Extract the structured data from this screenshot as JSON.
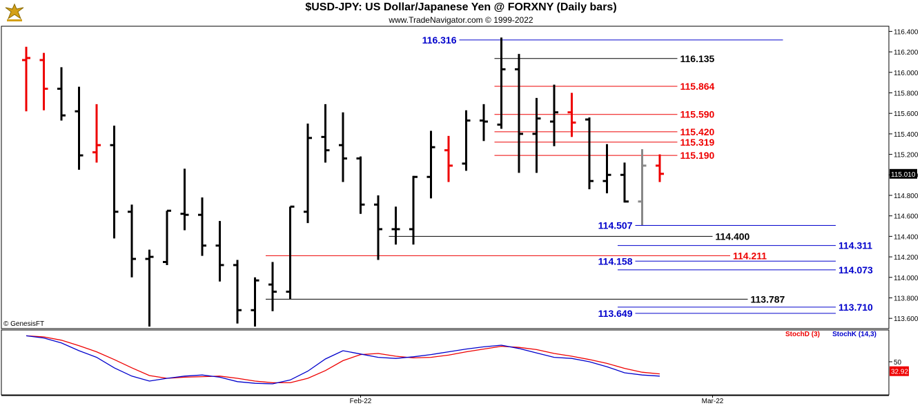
{
  "header": {
    "title": "$USD-JPY:  US Dollar/Japanese Yen @ FORXNY  (Daily bars)",
    "subtitle": "www.TradeNavigator.com © 1999-2022",
    "logo_icon": "eagle-logo-icon",
    "watermark": "© GenesisFT"
  },
  "colors": {
    "up_bar": "#000000",
    "down_bar": "#ee0000",
    "current_bar": "#888888",
    "level_blue": "#0000cc",
    "level_red": "#ee0000",
    "level_black": "#000000",
    "stoch_d": "#ee0000",
    "stoch_k": "#0000cc",
    "last_price_bg": "#000000",
    "stoch_last_bg": "#ee0000"
  },
  "chart_data": {
    "type": "ohlc-bar",
    "price_axis": {
      "ylim": [
        113.5,
        116.45
      ],
      "ticks": [
        "116.400",
        "116.200",
        "116.000",
        "115.800",
        "115.600",
        "115.400",
        "115.200",
        "115.000",
        "114.800",
        "114.600",
        "114.400",
        "114.200",
        "114.000",
        "113.800",
        "113.600"
      ],
      "last_price": "115.010"
    },
    "time_axis": {
      "labels": [
        "Feb-22",
        "Mar-22"
      ],
      "label_bar_index": [
        19,
        39
      ]
    },
    "bars": [
      {
        "o": 116.12,
        "h": 116.25,
        "l": 115.62,
        "c": 116.14,
        "color": "down"
      },
      {
        "o": 116.12,
        "h": 116.19,
        "l": 115.63,
        "c": 115.84,
        "color": "down"
      },
      {
        "o": 115.84,
        "h": 116.05,
        "l": 115.53,
        "c": 115.58,
        "color": "up"
      },
      {
        "o": 115.62,
        "h": 115.86,
        "l": 115.05,
        "c": 115.19,
        "color": "up"
      },
      {
        "o": 115.22,
        "h": 115.69,
        "l": 115.12,
        "c": 115.29,
        "color": "down"
      },
      {
        "o": 115.29,
        "h": 115.48,
        "l": 114.38,
        "c": 114.64,
        "color": "up"
      },
      {
        "o": 114.64,
        "h": 114.71,
        "l": 114.0,
        "c": 114.18,
        "color": "up"
      },
      {
        "o": 114.18,
        "h": 114.27,
        "l": 113.52,
        "c": 114.2,
        "color": "up"
      },
      {
        "o": 114.15,
        "h": 114.65,
        "l": 114.12,
        "c": 114.65,
        "color": "up"
      },
      {
        "o": 114.62,
        "h": 115.06,
        "l": 114.46,
        "c": 114.61,
        "color": "up"
      },
      {
        "o": 114.61,
        "h": 114.78,
        "l": 114.21,
        "c": 114.31,
        "color": "up"
      },
      {
        "o": 114.31,
        "h": 114.55,
        "l": 113.96,
        "c": 114.12,
        "color": "up"
      },
      {
        "o": 114.12,
        "h": 114.17,
        "l": 113.55,
        "c": 113.68,
        "color": "up"
      },
      {
        "o": 113.68,
        "h": 114.0,
        "l": 113.52,
        "c": 113.97,
        "color": "up"
      },
      {
        "o": 113.93,
        "h": 114.15,
        "l": 113.67,
        "c": 113.86,
        "color": "up"
      },
      {
        "o": 113.86,
        "h": 114.69,
        "l": 113.79,
        "c": 114.69,
        "color": "up"
      },
      {
        "o": 114.64,
        "h": 115.5,
        "l": 114.53,
        "c": 115.36,
        "color": "up"
      },
      {
        "o": 115.37,
        "h": 115.69,
        "l": 115.12,
        "c": 115.24,
        "color": "up"
      },
      {
        "o": 115.29,
        "h": 115.61,
        "l": 114.93,
        "c": 115.16,
        "color": "up"
      },
      {
        "o": 115.16,
        "h": 115.18,
        "l": 114.62,
        "c": 114.71,
        "color": "up"
      },
      {
        "o": 114.71,
        "h": 114.8,
        "l": 114.17,
        "c": 114.47,
        "color": "up"
      },
      {
        "o": 114.47,
        "h": 114.69,
        "l": 114.32,
        "c": 114.47,
        "color": "up"
      },
      {
        "o": 114.47,
        "h": 114.99,
        "l": 114.32,
        "c": 114.98,
        "color": "up"
      },
      {
        "o": 114.98,
        "h": 115.43,
        "l": 114.77,
        "c": 115.27,
        "color": "up"
      },
      {
        "o": 115.24,
        "h": 115.38,
        "l": 114.93,
        "c": 115.09,
        "color": "down"
      },
      {
        "o": 115.11,
        "h": 115.63,
        "l": 115.04,
        "c": 115.53,
        "color": "up"
      },
      {
        "o": 115.53,
        "h": 115.69,
        "l": 115.33,
        "c": 115.52,
        "color": "up"
      },
      {
        "o": 115.49,
        "h": 116.34,
        "l": 115.45,
        "c": 116.03,
        "color": "up"
      },
      {
        "o": 116.03,
        "h": 116.18,
        "l": 115.02,
        "c": 115.4,
        "color": "up"
      },
      {
        "o": 115.4,
        "h": 115.75,
        "l": 115.02,
        "c": 115.55,
        "color": "up"
      },
      {
        "o": 115.52,
        "h": 115.88,
        "l": 115.28,
        "c": 115.61,
        "color": "up"
      },
      {
        "o": 115.61,
        "h": 115.8,
        "l": 115.37,
        "c": 115.51,
        "color": "down"
      },
      {
        "o": 115.54,
        "h": 115.56,
        "l": 114.86,
        "c": 114.94,
        "color": "up"
      },
      {
        "o": 114.94,
        "h": 115.3,
        "l": 114.82,
        "c": 115.0,
        "color": "up"
      },
      {
        "o": 115.0,
        "h": 115.12,
        "l": 114.73,
        "c": 114.74,
        "color": "up"
      },
      {
        "o": 114.74,
        "h": 115.25,
        "l": 114.51,
        "c": 115.09,
        "color": "current"
      },
      {
        "o": 115.09,
        "h": 115.2,
        "l": 114.93,
        "c": 115.01,
        "color": "down"
      }
    ],
    "levels": [
      {
        "label": "116.316",
        "value": 116.316,
        "color": "blue",
        "from_bar": 25,
        "to_bar": 43,
        "label_side": "left"
      },
      {
        "label": "116.135",
        "value": 116.135,
        "color": "black",
        "from_bar": 27,
        "to_bar": 37,
        "label_side": "right"
      },
      {
        "label": "115.864",
        "value": 115.864,
        "color": "red",
        "from_bar": 27,
        "to_bar": 37,
        "label_side": "right"
      },
      {
        "label": "115.590",
        "value": 115.59,
        "color": "red",
        "from_bar": 27,
        "to_bar": 37,
        "label_side": "right"
      },
      {
        "label": "115.420",
        "value": 115.42,
        "color": "red",
        "from_bar": 27,
        "to_bar": 37,
        "label_side": "right"
      },
      {
        "label": "115.319",
        "value": 115.319,
        "color": "red",
        "from_bar": 27,
        "to_bar": 37,
        "label_side": "right"
      },
      {
        "label": "115.190",
        "value": 115.19,
        "color": "red",
        "from_bar": 27,
        "to_bar": 37,
        "label_side": "right"
      },
      {
        "label": "114.507",
        "value": 114.507,
        "color": "blue",
        "from_bar": 35,
        "to_bar": 46,
        "label_side": "left"
      },
      {
        "label": "114.400",
        "value": 114.4,
        "color": "black",
        "from_bar": 21,
        "to_bar": 39,
        "label_side": "right"
      },
      {
        "label": "114.311",
        "value": 114.311,
        "color": "blue",
        "from_bar": 34,
        "to_bar": 46,
        "label_side": "right"
      },
      {
        "label": "114.211",
        "value": 114.211,
        "color": "red",
        "from_bar": 14,
        "to_bar": 40,
        "label_side": "right"
      },
      {
        "label": "114.158",
        "value": 114.158,
        "color": "blue",
        "from_bar": 35,
        "to_bar": 46,
        "label_side": "left"
      },
      {
        "label": "114.073",
        "value": 114.073,
        "color": "blue",
        "from_bar": 34,
        "to_bar": 46,
        "label_side": "right"
      },
      {
        "label": "113.787",
        "value": 113.787,
        "color": "black",
        "from_bar": 14,
        "to_bar": 41,
        "label_side": "right"
      },
      {
        "label": "113.710",
        "value": 113.71,
        "color": "blue",
        "from_bar": 34,
        "to_bar": 46,
        "label_side": "right"
      },
      {
        "label": "113.649",
        "value": 113.649,
        "color": "blue",
        "from_bar": 35,
        "to_bar": 46,
        "label_side": "left"
      }
    ],
    "stochastic": {
      "ylim": [
        0,
        100
      ],
      "ticks": [
        "50"
      ],
      "legend": [
        {
          "name": "StochD (3)",
          "color": "red"
        },
        {
          "name": "StochK (14,3)",
          "color": "blue"
        }
      ],
      "last_value": "32.92",
      "k": [
        97,
        93,
        84,
        70,
        58,
        39,
        24,
        15,
        20,
        24,
        26,
        22,
        14,
        11,
        10,
        17,
        33,
        55,
        70,
        64,
        58,
        56,
        59,
        63,
        68,
        73,
        77,
        80,
        74,
        66,
        58,
        56,
        50,
        41,
        30,
        26,
        24
      ],
      "d": [
        97,
        95,
        89,
        79,
        68,
        54,
        39,
        25,
        20,
        22,
        23,
        24,
        20,
        15,
        12,
        12,
        20,
        34,
        52,
        63,
        65,
        60,
        57,
        58,
        62,
        68,
        73,
        78,
        76,
        72,
        65,
        60,
        54,
        47,
        38,
        31,
        28
      ]
    }
  }
}
